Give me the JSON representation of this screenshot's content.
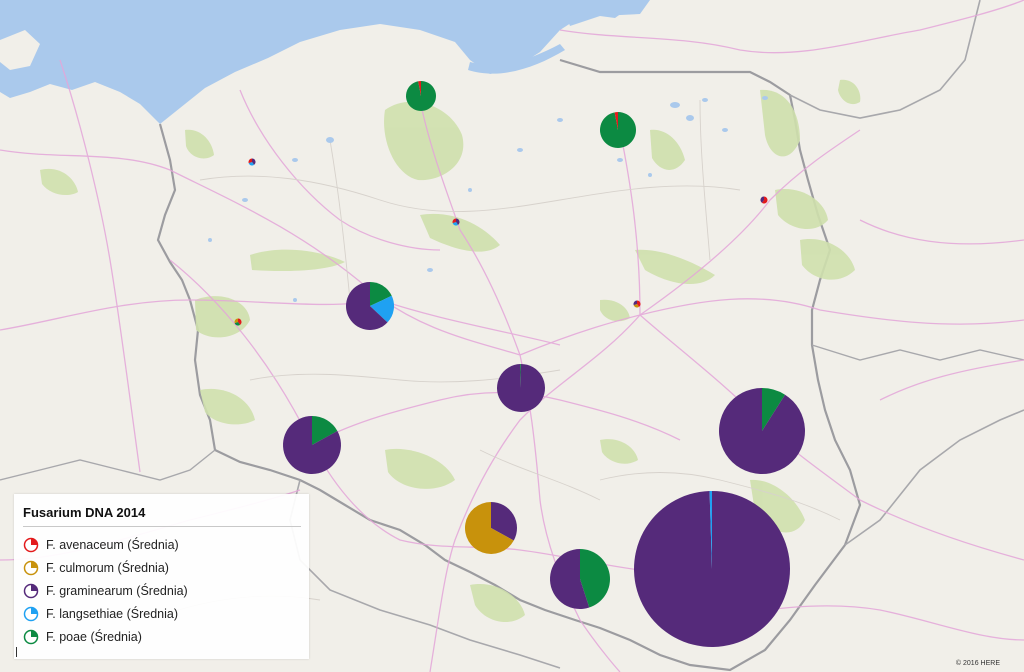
{
  "legend": {
    "title": "Fusarium DNA 2014",
    "items": [
      {
        "label": "F. avenaceum (Średnia)",
        "color": "#e31a1c"
      },
      {
        "label": "F. culmorum (Średnia)",
        "color": "#c8920c"
      },
      {
        "label": "F. graminearum (Średnia)",
        "color": "#552a7a"
      },
      {
        "label": "F. langsethiae (Średnia)",
        "color": "#1fa1f2"
      },
      {
        "label": "F. poae (Średnia)",
        "color": "#0c8a42"
      }
    ]
  },
  "copyright": "© 2016 HERE",
  "colors": {
    "avenaceum": "#e31a1c",
    "culmorum": "#c8920c",
    "graminearum": "#552a7a",
    "langsethiae": "#1fa1f2",
    "poae": "#0c8a42"
  },
  "map_icons": {
    "legend_swatch": "pie-swatch-icon"
  }
}
